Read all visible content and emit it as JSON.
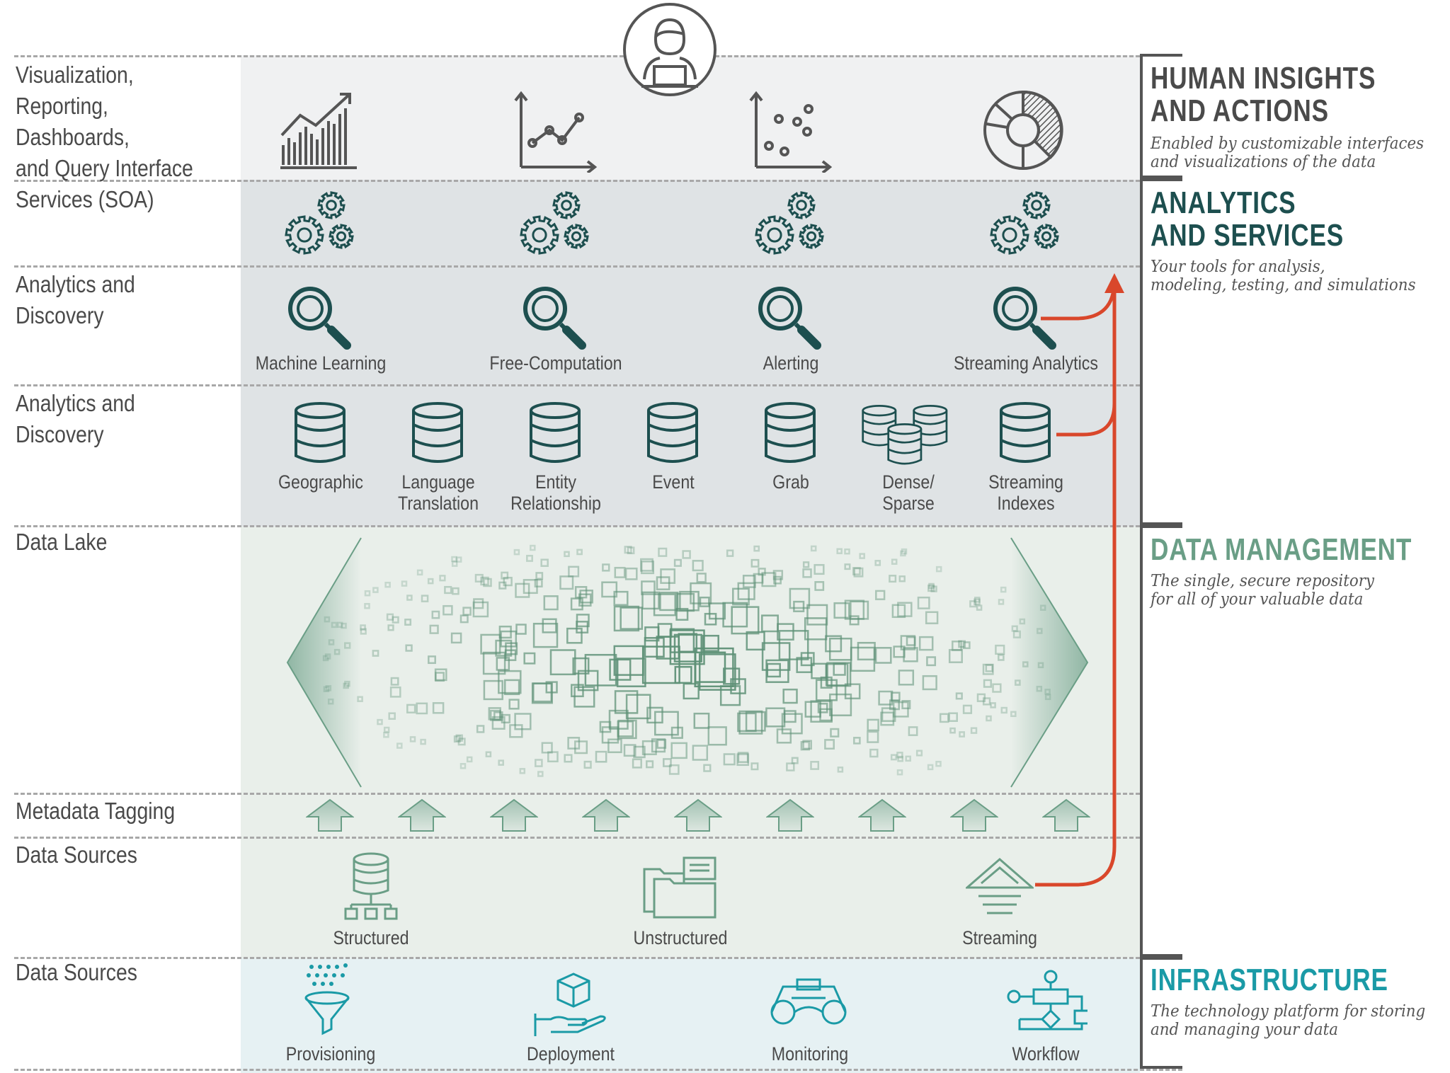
{
  "rows": [
    {
      "label": "Visualization,\nReporting, Dashboards,\nand Query Interface"
    },
    {
      "label": "Services (SOA)"
    },
    {
      "label": "Analytics and\nDiscovery"
    },
    {
      "label": "Analytics and\nDiscovery"
    },
    {
      "label": "Data Lake"
    },
    {
      "label": "Metadata Tagging"
    },
    {
      "label": "Data Sources"
    },
    {
      "label": "Data Sources"
    }
  ],
  "analytics_tools": [
    "Machine Learning",
    "Free-Computation",
    "Alerting",
    "Streaming Analytics"
  ],
  "indexes": [
    "Geographic",
    "Language\nTranslation",
    "Entity\nRelationship",
    "Event",
    "Grab",
    "Dense/\nSparse",
    "Streaming\nIndexes"
  ],
  "data_sources": [
    "Structured",
    "Unstructured",
    "Streaming"
  ],
  "infrastructure_items": [
    "Provisioning",
    "Deployment",
    "Monitoring",
    "Workflow"
  ],
  "sections": {
    "human": {
      "title_line1": "HUMAN INSIGHTS",
      "title_line2": "AND ACTIONS",
      "subtitle": "Enabled by customizable interfaces\nand visualizations of the data",
      "color": "#4a4a4a"
    },
    "analytics": {
      "title_line1": "ANALYTICS",
      "title_line2": "AND SERVICES",
      "subtitle": "Your tools for analysis,\nmodeling, testing, and simulations",
      "color": "#1d4f4f"
    },
    "data": {
      "title": "DATA MANAGEMENT",
      "subtitle": "The single, secure repository\nfor all of your valuable data",
      "color": "#6a9e86"
    },
    "infra": {
      "title": "INFRASTRUCTURE",
      "subtitle": "The technology platform for storing\nand managing your data",
      "color": "#1a9aa6"
    }
  },
  "icons": {
    "user": "person-at-laptop-icon",
    "visualization": [
      "bar-chart-icon",
      "line-chart-icon",
      "scatter-plot-icon",
      "donut-chart-icon"
    ],
    "services": "gears-icon",
    "analytics": "magnifier-icon",
    "indexes": "database-icon",
    "metadata": "up-arrow-icon",
    "streaming_flow": "arrow-icon"
  },
  "colors": {
    "dark_teal": "#1d4f4f",
    "green": "#6a9e86",
    "infra_teal": "#1a9aa6",
    "arrow": "#d9472b"
  }
}
